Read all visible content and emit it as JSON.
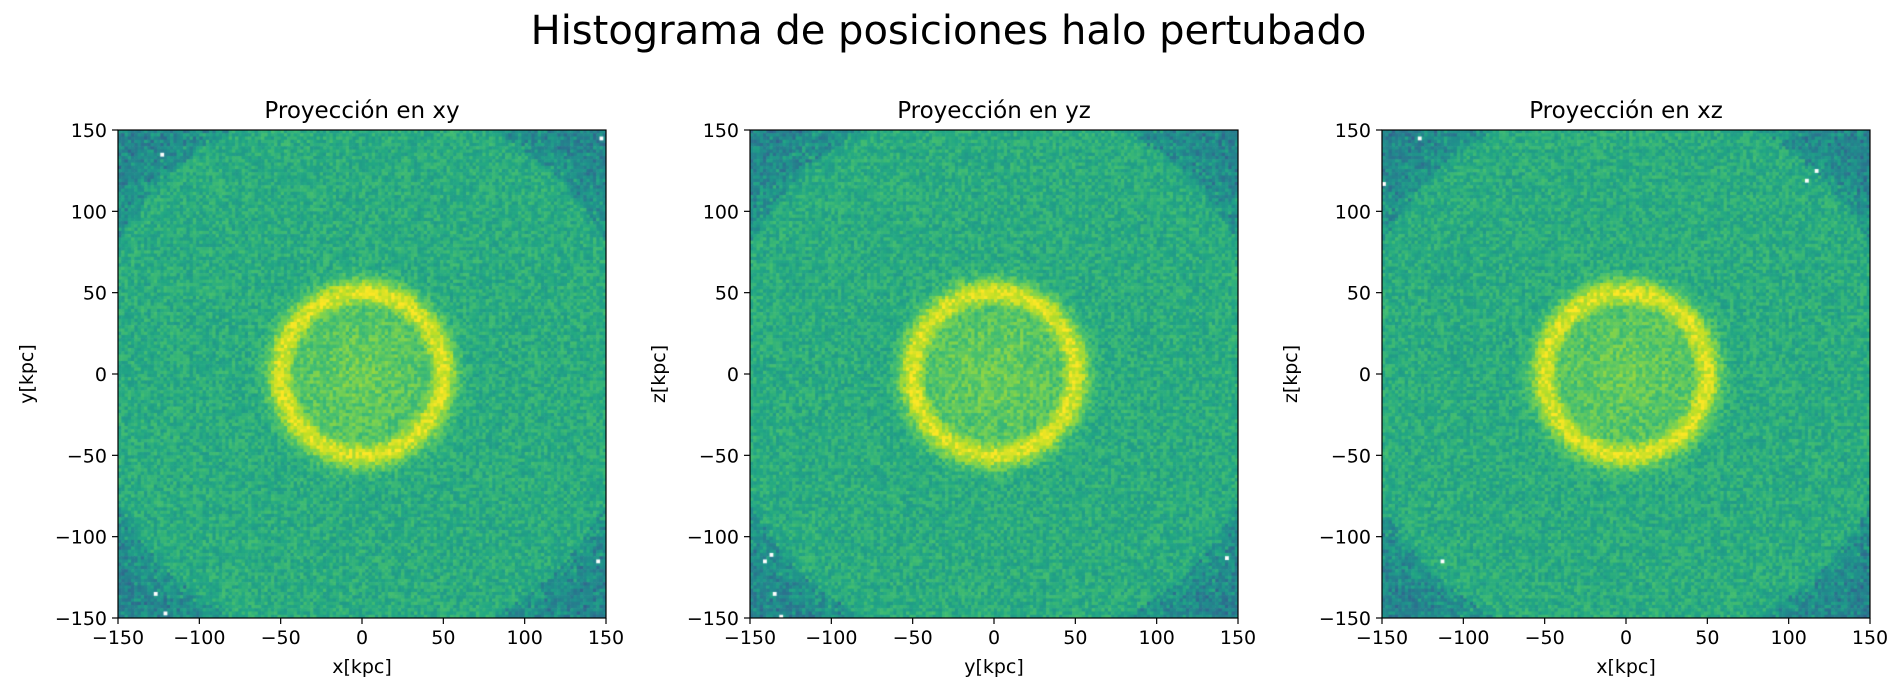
{
  "figure": {
    "suptitle": "Histograma de posiciones halo pertubado"
  },
  "chart_data": [
    {
      "type": "heatmap",
      "title": "Proyección en xy",
      "xlabel": "x[kpc]",
      "ylabel": "y[kpc]",
      "xlim": [
        -150,
        150
      ],
      "ylim": [
        -150,
        150
      ],
      "xticks": [
        -150,
        -100,
        -50,
        0,
        50,
        100,
        150
      ],
      "yticks": [
        -150,
        -100,
        -50,
        0,
        50,
        100,
        150
      ],
      "xtick_labels": [
        "−150",
        "−100",
        "−50",
        "0",
        "50",
        "100",
        "150"
      ],
      "ytick_labels": [
        "−150",
        "−100",
        "−50",
        "0",
        "50",
        "100",
        "150"
      ],
      "colormap": "viridis",
      "distribution": {
        "center": [
          0,
          0
        ],
        "ring_radius_kpc": 50,
        "description_note": ""
      },
      "empty_bins_visible": true
    },
    {
      "type": "heatmap",
      "title": "Proyección en yz",
      "xlabel": "y[kpc]",
      "ylabel": "z[kpc]",
      "xlim": [
        -150,
        150
      ],
      "ylim": [
        -150,
        150
      ],
      "xticks": [
        -150,
        -100,
        -50,
        0,
        50,
        100,
        150
      ],
      "yticks": [
        -150,
        -100,
        -50,
        0,
        50,
        100,
        150
      ],
      "xtick_labels": [
        "−150",
        "−100",
        "−50",
        "0",
        "50",
        "100",
        "150"
      ],
      "ytick_labels": [
        "−150",
        "−100",
        "−50",
        "0",
        "50",
        "100",
        "150"
      ],
      "colormap": "viridis",
      "distribution": {
        "center": [
          0,
          0
        ],
        "ring_radius_kpc": 50,
        "description_note": ""
      },
      "empty_bins_visible": true
    },
    {
      "type": "heatmap",
      "title": "Proyección en xz",
      "xlabel": "x[kpc]",
      "ylabel": "z[kpc]",
      "xlim": [
        -150,
        150
      ],
      "ylim": [
        -150,
        150
      ],
      "xticks": [
        -150,
        -100,
        -50,
        0,
        50,
        100,
        150
      ],
      "yticks": [
        -150,
        -100,
        -50,
        0,
        50,
        100,
        150
      ],
      "xtick_labels": [
        "−150",
        "−100",
        "−50",
        "0",
        "50",
        "100",
        "150"
      ],
      "ytick_labels": [
        "−150",
        "−100",
        "−50",
        "0",
        "50",
        "100",
        "150"
      ],
      "colormap": "viridis",
      "distribution": {
        "center": [
          0,
          0
        ],
        "ring_radius_kpc": 50,
        "description_note": ""
      },
      "empty_bins_visible": true
    }
  ]
}
